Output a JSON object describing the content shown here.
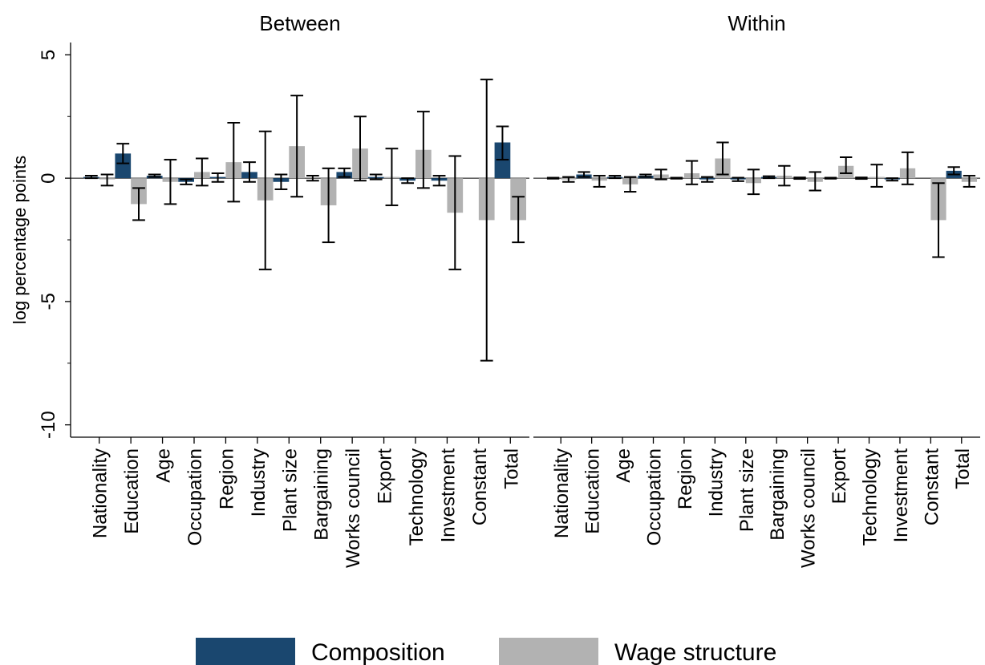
{
  "chart_data": {
    "type": "bar",
    "ylabel": "log percentage points",
    "ylim": [
      -10.5,
      5.5
    ],
    "yticks": [
      5,
      0,
      -5,
      -10
    ],
    "colors": {
      "composition": "#1a476f",
      "wage_structure": "#b2b2b2"
    },
    "legend": {
      "position": "bottom",
      "items": [
        "Composition",
        "Wage structure"
      ]
    },
    "categories": [
      "Nationality",
      "Education",
      "Age",
      "Occupation",
      "Region",
      "Industry",
      "Plant size",
      "Bargaining",
      "Works council",
      "Export",
      "Technology",
      "Investment",
      "Constant",
      "Total"
    ],
    "panels": [
      {
        "title": "Between",
        "series": [
          {
            "name": "Composition",
            "values": [
              0.05,
              1.0,
              0.1,
              -0.15,
              0.05,
              0.25,
              -0.15,
              0.0,
              0.25,
              0.05,
              -0.1,
              -0.1,
              0.0,
              1.45
            ],
            "ci_low": [
              0.0,
              0.6,
              0.05,
              -0.25,
              -0.15,
              -0.15,
              -0.45,
              -0.1,
              0.05,
              -0.05,
              -0.2,
              -0.3,
              0.0,
              0.75
            ],
            "ci_high": [
              0.1,
              1.4,
              0.15,
              -0.05,
              0.2,
              0.65,
              0.15,
              0.1,
              0.4,
              0.15,
              0.0,
              0.1,
              0.0,
              2.1
            ]
          },
          {
            "name": "Wage structure",
            "values": [
              -0.05,
              -1.05,
              -0.15,
              0.25,
              0.65,
              -0.9,
              1.3,
              -1.1,
              1.2,
              0.05,
              1.15,
              -1.4,
              -1.7,
              -1.7
            ],
            "ci_low": [
              -0.3,
              -1.7,
              -1.05,
              -0.3,
              -0.95,
              -3.7,
              -0.75,
              -2.6,
              -0.1,
              -1.1,
              -0.4,
              -3.7,
              -7.4,
              -2.6
            ],
            "ci_high": [
              0.15,
              -0.4,
              0.75,
              0.8,
              2.25,
              1.9,
              3.35,
              0.4,
              2.5,
              1.2,
              2.7,
              0.9,
              4.0,
              -0.75
            ]
          }
        ]
      },
      {
        "title": "Within",
        "series": [
          {
            "name": "Composition",
            "values": [
              0.0,
              0.15,
              0.05,
              0.1,
              0.0,
              -0.05,
              -0.05,
              0.05,
              0.0,
              0.0,
              0.0,
              -0.05,
              0.0,
              0.3
            ],
            "ci_low": [
              -0.02,
              0.05,
              0.0,
              0.05,
              -0.02,
              -0.15,
              -0.12,
              0.0,
              -0.03,
              -0.02,
              -0.03,
              -0.1,
              0.0,
              0.15
            ],
            "ci_high": [
              0.02,
              0.25,
              0.1,
              0.15,
              0.02,
              0.05,
              0.02,
              0.08,
              0.03,
              0.02,
              0.03,
              0.0,
              0.0,
              0.45
            ]
          },
          {
            "name": "Wage structure",
            "values": [
              -0.05,
              -0.1,
              -0.25,
              0.15,
              0.2,
              0.8,
              -0.2,
              0.1,
              -0.15,
              0.5,
              0.05,
              0.4,
              -1.7,
              -0.15
            ],
            "ci_low": [
              -0.15,
              -0.35,
              -0.55,
              -0.05,
              -0.25,
              0.15,
              -0.65,
              -0.3,
              -0.5,
              0.2,
              -0.35,
              -0.25,
              -3.2,
              -0.35
            ],
            "ci_high": [
              0.05,
              0.1,
              0.05,
              0.35,
              0.7,
              1.45,
              0.35,
              0.5,
              0.25,
              0.85,
              0.55,
              1.05,
              -0.2,
              0.1
            ]
          }
        ]
      }
    ]
  }
}
